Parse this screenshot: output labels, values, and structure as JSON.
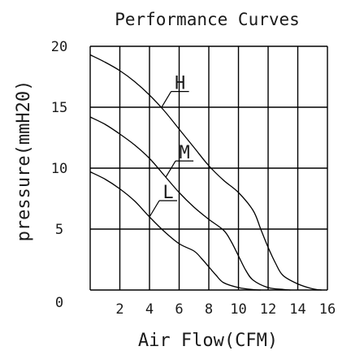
{
  "chart_data": {
    "type": "line",
    "title": "Performance Curves",
    "xlabel": "Air Flow(CFM)",
    "ylabel": "pressure(mmH20)",
    "xlim": [
      0,
      16
    ],
    "ylim": [
      0,
      20
    ],
    "x_ticks": [
      "2",
      "4",
      "6",
      "8",
      "10",
      "12",
      "14",
      "16"
    ],
    "y_ticks": [
      "0",
      "5",
      "10",
      "15",
      "20"
    ],
    "grid": true,
    "series": [
      {
        "name": "H",
        "x": [
          0,
          1,
          2,
          3,
          4,
          5,
          6,
          7,
          8,
          9,
          10,
          11,
          11.5,
          12,
          12.5,
          13,
          14,
          15,
          15.6
        ],
        "y": [
          19.3,
          18.7,
          18.0,
          17.1,
          16.0,
          14.7,
          13.2,
          11.7,
          10.2,
          9.0,
          8.0,
          6.5,
          5.0,
          3.5,
          2.2,
          1.2,
          0.5,
          0.1,
          0
        ]
      },
      {
        "name": "M",
        "x": [
          0,
          1,
          2,
          3,
          4,
          5,
          6,
          7,
          8,
          9,
          9.5,
          10,
          10.5,
          11,
          12,
          13,
          13.5
        ],
        "y": [
          14.2,
          13.6,
          12.8,
          11.9,
          10.8,
          9.4,
          8.0,
          6.8,
          5.8,
          4.9,
          4.0,
          2.8,
          1.6,
          0.8,
          0.2,
          0.05,
          0
        ]
      },
      {
        "name": "L",
        "x": [
          0,
          1,
          2,
          3,
          4,
          5,
          6,
          7,
          7.5,
          8,
          8.5,
          9,
          10,
          11,
          11.5
        ],
        "y": [
          9.7,
          9.1,
          8.3,
          7.3,
          6.0,
          4.8,
          3.8,
          3.2,
          2.6,
          1.9,
          1.2,
          0.6,
          0.2,
          0.03,
          0
        ]
      }
    ]
  }
}
